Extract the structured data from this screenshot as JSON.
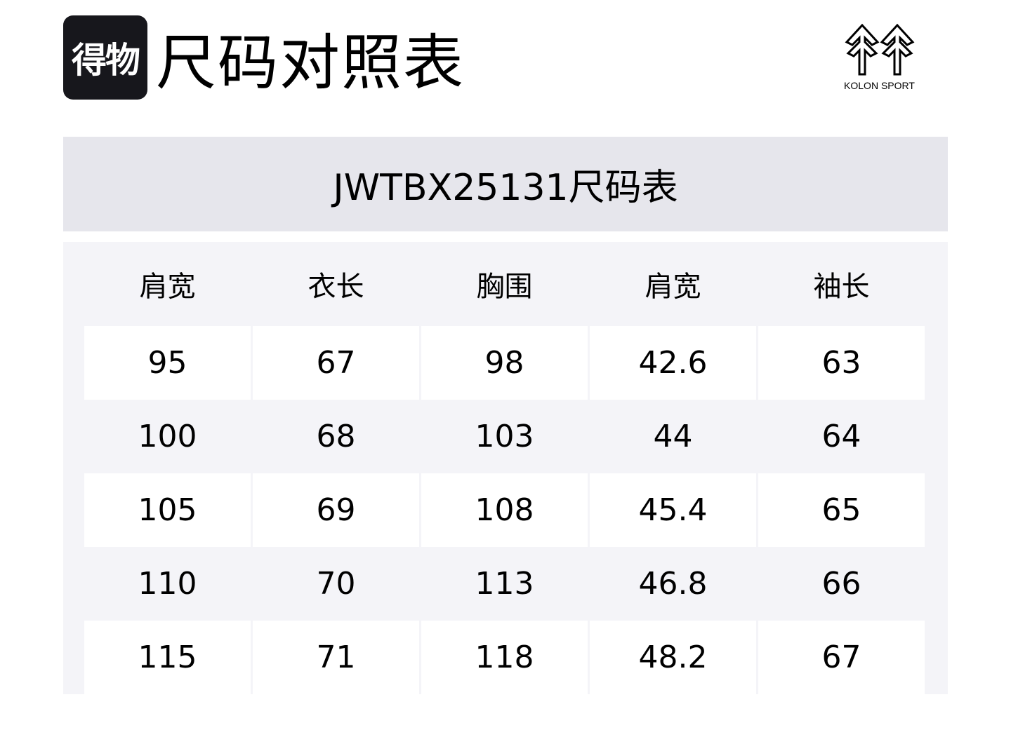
{
  "header": {
    "badge_text": "得物",
    "title": "尺码对照表",
    "brand_logo_text": "KOLON SPORT",
    "brand_logo_icon": "kolon-tree-logo"
  },
  "table_title": "JWTBX25131尺码表",
  "table": {
    "columns": [
      "肩宽",
      "衣长",
      "胸围",
      "肩宽",
      "袖长"
    ],
    "rows": [
      [
        "95",
        "67",
        "98",
        "42.6",
        "63"
      ],
      [
        "100",
        "68",
        "103",
        "44",
        "64"
      ],
      [
        "105",
        "69",
        "108",
        "45.4",
        "65"
      ],
      [
        "110",
        "70",
        "113",
        "46.8",
        "66"
      ],
      [
        "115",
        "71",
        "118",
        "48.2",
        "67"
      ]
    ]
  },
  "colors": {
    "band": "#e6e6ec",
    "table_bg": "#f4f4f8",
    "badge": "#17171c"
  }
}
